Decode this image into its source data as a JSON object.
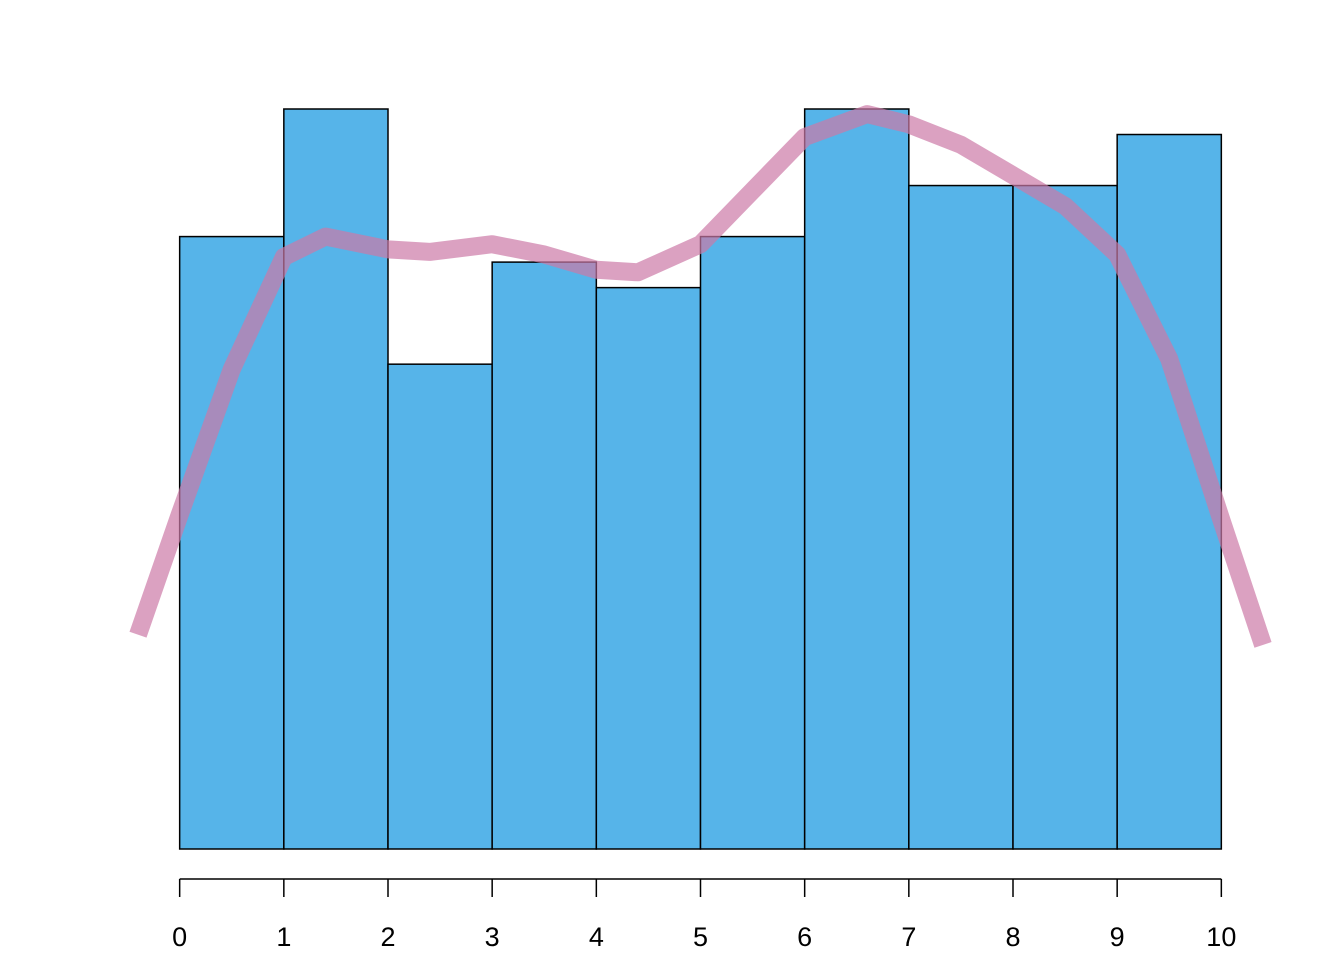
{
  "chart_data": {
    "type": "histogram",
    "bins": [
      0,
      1,
      2,
      3,
      4,
      5,
      6,
      7,
      8,
      9,
      10
    ],
    "counts": [
      24,
      29,
      19,
      23,
      22,
      24,
      29,
      26,
      26,
      28
    ],
    "color": "#56b4e9",
    "xlim": [
      -0.4,
      10.4
    ],
    "ylim": [
      0,
      29
    ],
    "xticks": [
      0,
      1,
      2,
      3,
      4,
      5,
      6,
      7,
      8,
      9,
      10
    ],
    "density": {
      "color": "#cc79a7",
      "x": [
        -0.4,
        0,
        0.5,
        1,
        1.4,
        2,
        2.4,
        3,
        3.5,
        4,
        4.4,
        5,
        5.5,
        6,
        6.6,
        7,
        7.5,
        8,
        8.5,
        9,
        9.5,
        10,
        10.4
      ],
      "values": [
        8.4,
        13.1,
        18.8,
        23.2,
        24.0,
        23.5,
        23.4,
        23.7,
        23.3,
        22.7,
        22.6,
        23.7,
        25.8,
        27.9,
        28.8,
        28.4,
        27.6,
        26.4,
        25.2,
        23.3,
        19.2,
        12.9,
        8.0
      ]
    }
  }
}
